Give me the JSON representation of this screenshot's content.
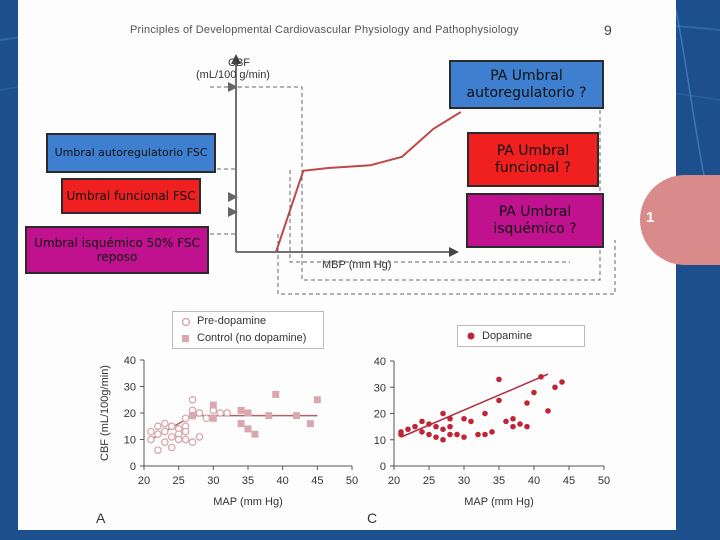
{
  "book": {
    "header": "Principles of Developmental Cardiovascular Physiology and Pathophysiology",
    "page_number": "9",
    "tab_number": "1"
  },
  "callouts": {
    "autoreg_left": "Umbral autoregulatorio FSC",
    "functional_left": "Umbral funcional FSC",
    "ischemic_left": "Umbral isquémico 50% FSC reposo",
    "autoreg_right": "PA Umbral autoregulatorio ?",
    "functional_right": "PA Umbral funcional ?",
    "ischemic_right": "PA Umbral isquémico ?"
  },
  "colors": {
    "slide_bg": "#1d4f8c",
    "box_blue": "#3f7fd0",
    "box_red": "#f02020",
    "box_magenta": "#c0118f",
    "curve": "#c04848",
    "pink_marker": "#d9a8ae",
    "dot_red": "#c02435"
  },
  "chart_data": [
    {
      "type": "line",
      "xlabel": "MBP (mm Hg)",
      "ylabel": "CBF (mL/100 g/min)",
      "note": "Schematic autoregulation curve; axes without numeric ticks",
      "curve": {
        "x": [
          0,
          0.13,
          0.25,
          0.45,
          0.6,
          0.75,
          0.88
        ],
        "y": [
          0,
          0.58,
          0.6,
          0.62,
          0.68,
          0.88,
          1.0
        ]
      }
    },
    {
      "type": "scatter",
      "panel": "A",
      "xlabel": "MAP (mm Hg)",
      "ylabel": "CBF (mL/100g/min)",
      "xlim": [
        20,
        50
      ],
      "ylim": [
        0,
        40
      ],
      "xticks": [
        "20",
        "25",
        "30",
        "35",
        "40",
        "45",
        "50"
      ],
      "yticks": [
        "0",
        "10",
        "20",
        "30",
        "40"
      ],
      "legend": [
        "Pre-dopamine",
        "Control (no dopamine)"
      ],
      "series": [
        {
          "name": "Pre-dopamine",
          "marker": "open-circle",
          "points": [
            [
              21,
              13
            ],
            [
              21,
              10
            ],
            [
              22,
              15
            ],
            [
              22,
              12
            ],
            [
              22,
              6
            ],
            [
              23,
              16
            ],
            [
              23,
              13
            ],
            [
              23,
              9
            ],
            [
              24,
              15
            ],
            [
              24,
              11
            ],
            [
              24,
              7
            ],
            [
              25,
              14
            ],
            [
              25,
              12
            ],
            [
              25,
              10
            ],
            [
              26,
              18
            ],
            [
              26,
              15
            ],
            [
              26,
              13
            ],
            [
              26,
              10
            ],
            [
              27,
              25
            ],
            [
              27,
              21
            ],
            [
              27,
              19
            ],
            [
              27,
              9
            ],
            [
              28,
              20
            ],
            [
              28,
              11
            ],
            [
              29,
              18
            ],
            [
              30,
              21
            ],
            [
              31,
              20
            ],
            [
              32,
              20
            ]
          ]
        },
        {
          "name": "Control (no dopamine)",
          "marker": "square",
          "points": [
            [
              27,
              19
            ],
            [
              30,
              23
            ],
            [
              30,
              18
            ],
            [
              34,
              21
            ],
            [
              35,
              20
            ],
            [
              34,
              16
            ],
            [
              35,
              14
            ],
            [
              36,
              12
            ],
            [
              38,
              19
            ],
            [
              39,
              27
            ],
            [
              42,
              19
            ],
            [
              44,
              16
            ],
            [
              45,
              25
            ]
          ]
        }
      ],
      "fit_line": {
        "x": [
          21,
          27,
          45
        ],
        "y": [
          10,
          19,
          19
        ]
      }
    },
    {
      "type": "scatter",
      "panel": "C",
      "xlabel": "MAP (mm Hg)",
      "xlim": [
        20,
        50
      ],
      "ylim": [
        0,
        40
      ],
      "xticks": [
        "20",
        "25",
        "30",
        "35",
        "40",
        "45",
        "50"
      ],
      "yticks": [
        "0",
        "10",
        "20",
        "30",
        "40"
      ],
      "legend": [
        "Dopamine"
      ],
      "series": [
        {
          "name": "Dopamine",
          "marker": "filled-circle",
          "points": [
            [
              21,
              13
            ],
            [
              21,
              12
            ],
            [
              22,
              14
            ],
            [
              23,
              15
            ],
            [
              24,
              17
            ],
            [
              24,
              13
            ],
            [
              25,
              16
            ],
            [
              25,
              12
            ],
            [
              26,
              15
            ],
            [
              26,
              11
            ],
            [
              27,
              20
            ],
            [
              27,
              14
            ],
            [
              27,
              10
            ],
            [
              28,
              18
            ],
            [
              28,
              15
            ],
            [
              28,
              12
            ],
            [
              29,
              12
            ],
            [
              30,
              11
            ],
            [
              30,
              18
            ],
            [
              31,
              17
            ],
            [
              32,
              12
            ],
            [
              33,
              12
            ],
            [
              33,
              20
            ],
            [
              34,
              13
            ],
            [
              35,
              33
            ],
            [
              35,
              25
            ],
            [
              36,
              17
            ],
            [
              37,
              18
            ],
            [
              37,
              15
            ],
            [
              38,
              16
            ],
            [
              39,
              15
            ],
            [
              39,
              24
            ],
            [
              40,
              28
            ],
            [
              41,
              34
            ],
            [
              42,
              21
            ],
            [
              43,
              30
            ],
            [
              44,
              32
            ]
          ]
        }
      ],
      "fit_line": {
        "x": [
          21,
          42
        ],
        "y": [
          11,
          35
        ]
      }
    }
  ]
}
